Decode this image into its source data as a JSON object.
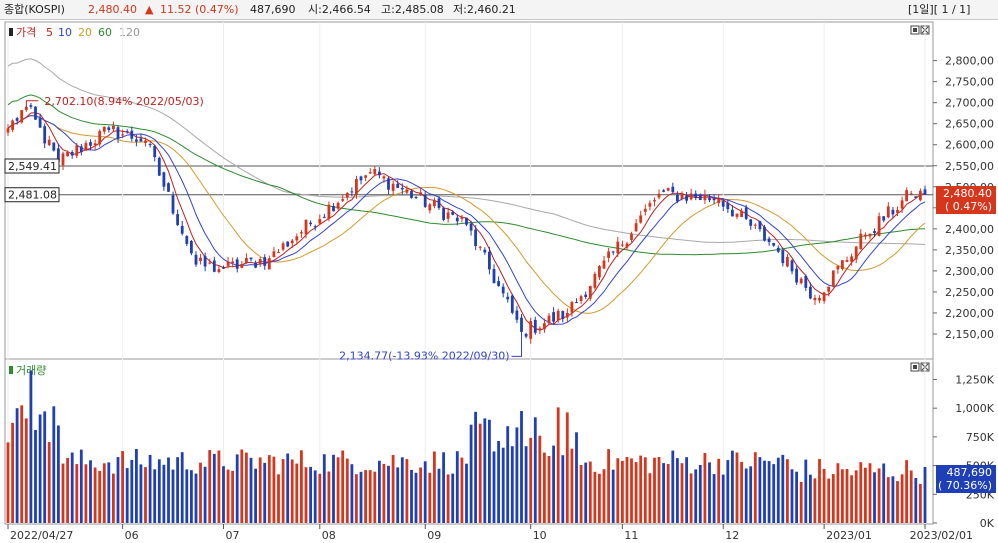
{
  "header": {
    "name": "종합(KOSPI)",
    "price": "2,480.40",
    "change_arrow": "▲",
    "change": "11.52 (0.47%)",
    "volume": "487,690",
    "open": "시:2,466.54",
    "high": "고:2,485.08",
    "low": "저:2,460.21",
    "period": "[1일][ 1 / 1]"
  },
  "colors": {
    "up": "#d6361c",
    "down": "#1e3fb5",
    "ma5": "#c02020",
    "ma10": "#3344cc",
    "ma20": "#d49a2a",
    "ma60": "#2e8b2e",
    "ma120": "#a8a8a8",
    "volume_ind": "#2e8b2e"
  },
  "price_panel": {
    "legend": [
      "가격",
      "5",
      "10",
      "20",
      "60",
      "120"
    ],
    "y_ticks": [
      "2,800,00",
      "2,750,00",
      "2,700,00",
      "2,650,00",
      "2,600,00",
      "2,550,00",
      "2,500,00",
      "2,450,00",
      "2,400,00",
      "2,350,00",
      "2,300,00",
      "2,250,00",
      "2,200,00",
      "2,150,00"
    ],
    "hline_labels": [
      "2,549.41",
      "2,481.08"
    ],
    "current_label": [
      "2,480.40",
      "( 0.47%)"
    ],
    "max_annotation": "2,702.10(8.94% 2022/05/03)",
    "min_annotation": "2,134.77(-13.93% 2022/09/30)"
  },
  "volume_panel": {
    "title": "거래량",
    "y_ticks": [
      "1,250K",
      "1,000K",
      "750K",
      "500K",
      "250K",
      "0K"
    ],
    "current_label": [
      "487,690",
      "( 70.36%)"
    ]
  },
  "x_axis": [
    "2022/04/27",
    "06",
    "07",
    "08",
    "09",
    "10",
    "11",
    "12",
    "2023/01",
    "2023/02/01"
  ],
  "chart_data": {
    "type": "candlestick",
    "price_ylim": [
      2100,
      2830
    ],
    "volume_ylim": [
      0,
      1350
    ],
    "volume_unit": "K",
    "candles_first_date": "2022/04/27",
    "candles_last_date": "2023/02/01",
    "keypoints": [
      {
        "date": "2022/04/27",
        "close": 2639
      },
      {
        "date": "2022/05/03",
        "close": 2690
      },
      {
        "date": "2022/05/12",
        "close": 2560
      },
      {
        "date": "2022/05/27",
        "close": 2635
      },
      {
        "date": "2022/06/08",
        "close": 2610
      },
      {
        "date": "2022/06/23",
        "close": 2315
      },
      {
        "date": "2022/07/01",
        "close": 2305
      },
      {
        "date": "2022/07/15",
        "close": 2330
      },
      {
        "date": "2022/08/16",
        "close": 2535
      },
      {
        "date": "2022/09/14",
        "close": 2410
      },
      {
        "date": "2022/09/30",
        "close": 2155
      },
      {
        "date": "2022/10/14",
        "close": 2200
      },
      {
        "date": "2022/11/11",
        "close": 2483
      },
      {
        "date": "2022/11/30",
        "close": 2472
      },
      {
        "date": "2022/12/16",
        "close": 2360
      },
      {
        "date": "2022/12/29",
        "close": 2236
      },
      {
        "date": "2023/01/13",
        "close": 2386
      },
      {
        "date": "2023/01/27",
        "close": 2484
      },
      {
        "date": "2023/02/01",
        "close": 2480.4
      }
    ],
    "hlines": [
      2549.41,
      2481.08
    ],
    "max_point": {
      "date": "2022/05/03",
      "value": 2702.1
    },
    "min_point": {
      "date": "2022/09/30",
      "value": 2134.77
    },
    "last_volume": 487.69
  }
}
